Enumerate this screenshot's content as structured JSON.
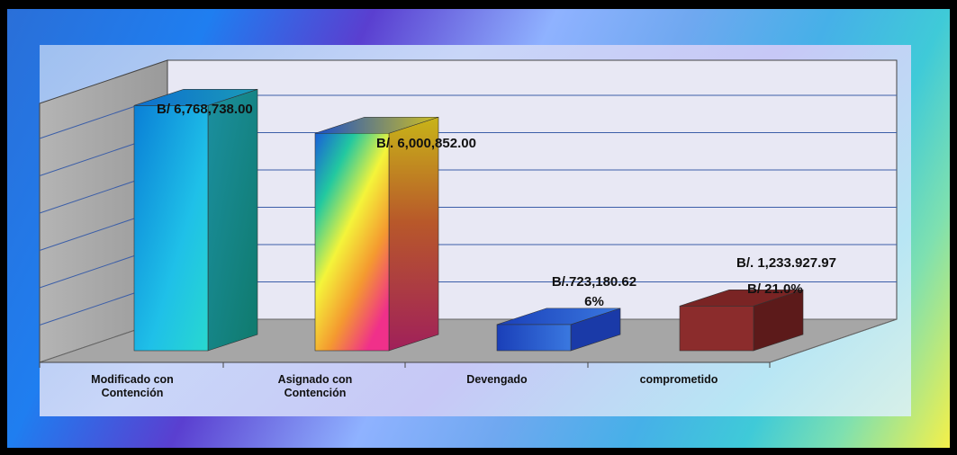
{
  "chart_data": {
    "type": "bar",
    "categories": [
      [
        "Modificado con",
        "Contención"
      ],
      [
        "Asignado con",
        "Contención"
      ],
      [
        "Devengado"
      ],
      [
        "comprometido"
      ]
    ],
    "values": [
      6768738.0,
      6000852.0,
      723180.62,
      1233927.97
    ],
    "data_labels": [
      [
        "B/ 6,768,738.00"
      ],
      [
        "B/. 6,000,852.00"
      ],
      [
        "B/.723,180.62",
        "6%"
      ],
      [
        "B/. 1,233.927.97",
        "B/ 21.0%"
      ]
    ],
    "title": "",
    "xlabel": "",
    "ylabel": "",
    "ylim": [
      0,
      7000000
    ],
    "grid": true,
    "legend": "none",
    "colors": {
      "bar1_front": "#1aa8e0",
      "bar1_side": "#168f88",
      "bar2_side": "#7a2a3a",
      "bar3": "#2050c8",
      "bar4_front": "#8b2c2c",
      "bar4_side": "#5c1a1a",
      "wall": "#a9a9a9",
      "gridline": "#3b5ea8"
    }
  }
}
